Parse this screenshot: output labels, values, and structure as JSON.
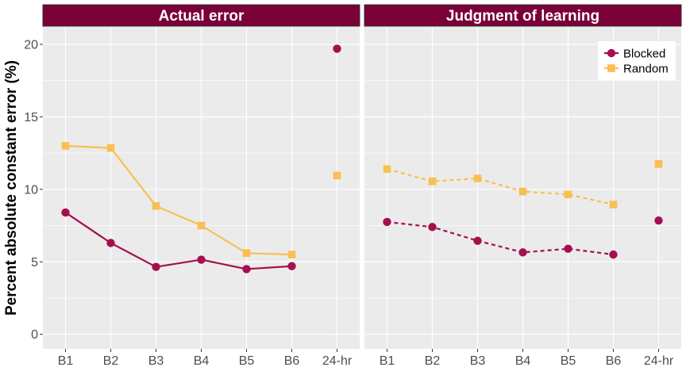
{
  "chart_data": {
    "type": "line",
    "ylabel": "Percent absolute constant error (%)",
    "xlabel": "",
    "categories": [
      "B1",
      "B2",
      "B3",
      "B4",
      "B5",
      "B6",
      "24-hr"
    ],
    "ylim": [
      -1,
      21.2
    ],
    "yticks": [
      0,
      5,
      10,
      15,
      20
    ],
    "grid": true,
    "legend_position": "top-right",
    "colors": {
      "Blocked": "#a50f4f",
      "Random": "#f9bf52",
      "strip": "#7a0037",
      "panel_bg": "#ebebeb"
    },
    "panels": [
      {
        "title": "Actual error",
        "line_style": "solid",
        "series": [
          {
            "name": "Blocked",
            "values": [
              8.4,
              6.3,
              4.65,
              5.15,
              4.5,
              4.7,
              19.7
            ]
          },
          {
            "name": "Random",
            "values": [
              13.0,
              12.85,
              8.85,
              7.5,
              5.6,
              5.5,
              10.95
            ]
          }
        ]
      },
      {
        "title": "Judgment of learning",
        "line_style": "dashed",
        "series": [
          {
            "name": "Blocked",
            "values": [
              7.75,
              7.4,
              6.45,
              5.65,
              5.9,
              5.5,
              7.85
            ]
          },
          {
            "name": "Random",
            "values": [
              11.4,
              10.55,
              10.75,
              9.85,
              9.65,
              8.95,
              11.75
            ]
          }
        ]
      }
    ]
  }
}
